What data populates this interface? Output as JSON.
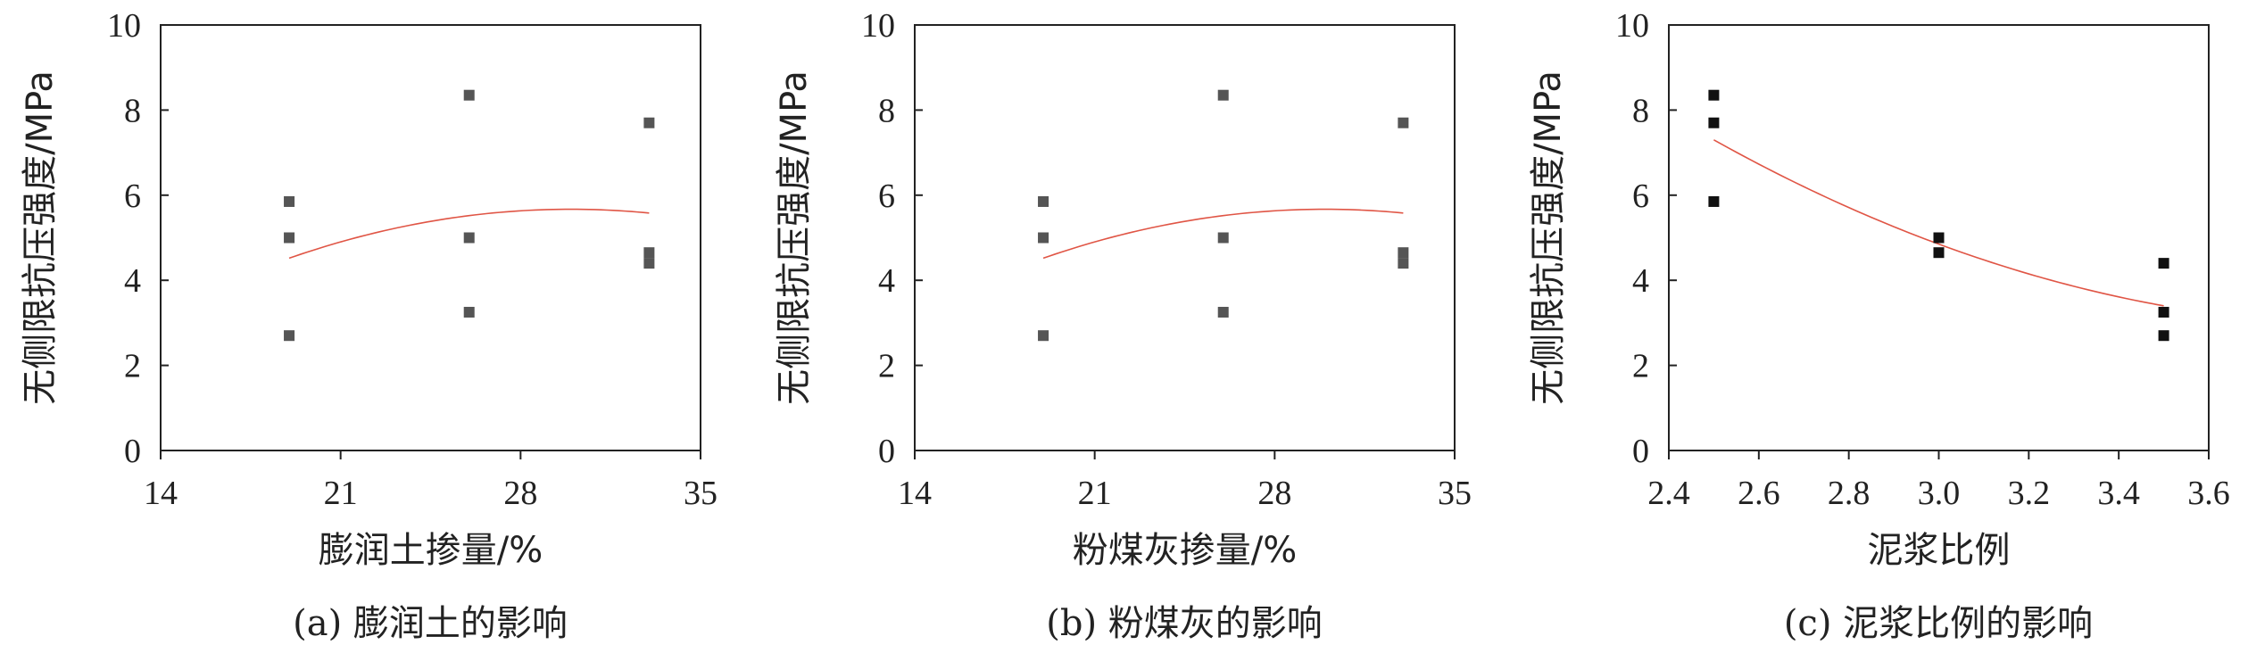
{
  "chart_data": [
    {
      "type": "scatter",
      "caption": "(a) 膨润土的影响",
      "xlabel": "膨润土掺量/%",
      "ylabel": "无侧限抗压强度/MPa",
      "xlim": [
        14,
        35
      ],
      "ylim": [
        0,
        10
      ],
      "xticks": [
        "14",
        "21",
        "28",
        "35"
      ],
      "yticks": [
        "0",
        "2",
        "4",
        "6",
        "8",
        "10"
      ],
      "points": [
        {
          "x": 19,
          "y": 5.85
        },
        {
          "x": 19,
          "y": 5.0
        },
        {
          "x": 19,
          "y": 2.7
        },
        {
          "x": 26,
          "y": 8.35
        },
        {
          "x": 26,
          "y": 5.0
        },
        {
          "x": 26,
          "y": 3.25
        },
        {
          "x": 33,
          "y": 7.7
        },
        {
          "x": 33,
          "y": 4.65
        },
        {
          "x": 33,
          "y": 4.4
        }
      ],
      "marker_color": "#555555",
      "fit": {
        "type": "quadratic",
        "x": [
          19,
          26,
          33
        ],
        "y": [
          4.52,
          5.52,
          5.58
        ],
        "color": "#e05545"
      }
    },
    {
      "type": "scatter",
      "caption": "(b) 粉煤灰的影响",
      "xlabel": "粉煤灰掺量/%",
      "ylabel": "无侧限抗压强度/MPa",
      "xlim": [
        14,
        35
      ],
      "ylim": [
        0,
        10
      ],
      "xticks": [
        "14",
        "21",
        "28",
        "35"
      ],
      "yticks": [
        "0",
        "2",
        "4",
        "6",
        "8",
        "10"
      ],
      "points": [
        {
          "x": 19,
          "y": 5.85
        },
        {
          "x": 19,
          "y": 5.0
        },
        {
          "x": 19,
          "y": 2.7
        },
        {
          "x": 26,
          "y": 8.35
        },
        {
          "x": 26,
          "y": 5.0
        },
        {
          "x": 26,
          "y": 3.25
        },
        {
          "x": 33,
          "y": 7.7
        },
        {
          "x": 33,
          "y": 4.65
        },
        {
          "x": 33,
          "y": 4.4
        }
      ],
      "marker_color": "#555555",
      "fit": {
        "type": "quadratic",
        "x": [
          19,
          26,
          33
        ],
        "y": [
          4.52,
          5.52,
          5.58
        ],
        "color": "#e05545"
      }
    },
    {
      "type": "scatter",
      "caption": "(c) 泥浆比例的影响",
      "xlabel": "泥浆比例",
      "ylabel": "无侧限抗压强度/MPa",
      "xlim": [
        2.4,
        3.6
      ],
      "ylim": [
        0,
        10
      ],
      "xticks": [
        "2.4",
        "2.6",
        "2.8",
        "3.0",
        "3.2",
        "3.4",
        "3.6"
      ],
      "yticks": [
        "0",
        "2",
        "4",
        "6",
        "8",
        "10"
      ],
      "points": [
        {
          "x": 2.5,
          "y": 8.35
        },
        {
          "x": 2.5,
          "y": 7.7
        },
        {
          "x": 2.5,
          "y": 5.85
        },
        {
          "x": 3.0,
          "y": 5.0
        },
        {
          "x": 3.0,
          "y": 4.65
        },
        {
          "x": 3.5,
          "y": 4.4
        },
        {
          "x": 3.5,
          "y": 3.25
        },
        {
          "x": 3.5,
          "y": 2.7
        }
      ],
      "marker_color": "#111111",
      "fit": {
        "type": "quadratic",
        "x": [
          2.5,
          3.0,
          3.5
        ],
        "y": [
          7.3,
          4.85,
          3.4
        ],
        "color": "#e05545"
      }
    }
  ]
}
